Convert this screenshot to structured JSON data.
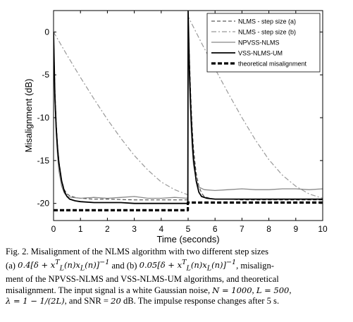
{
  "chart_data": {
    "type": "line",
    "xlabel": "Time (seconds)",
    "ylabel": "Misalignment (dB)",
    "xlim": [
      0,
      10
    ],
    "ylim": [
      -22,
      2.5
    ],
    "xticks": [
      0,
      1,
      2,
      3,
      4,
      5,
      6,
      7,
      8,
      9,
      10
    ],
    "yticks": [
      0,
      -5,
      -10,
      -15,
      -20
    ],
    "grid": false,
    "legend_position": "top-right",
    "series": [
      {
        "name": "NLMS - step size (a)",
        "style": "dashed-thin",
        "color": "#333333",
        "x": [
          0,
          0.05,
          0.1,
          0.15,
          0.2,
          0.3,
          0.4,
          0.5,
          0.6,
          0.8,
          1.0,
          1.5,
          2.0,
          3.0,
          4.0,
          4.99,
          5.0,
          5.05,
          5.1,
          5.15,
          5.2,
          5.3,
          5.4,
          5.5,
          5.6,
          5.8,
          6.0,
          6.5,
          7.0,
          8.0,
          9.0,
          10.0
        ],
        "y": [
          0,
          -6.5,
          -10.5,
          -13.2,
          -15.0,
          -17.3,
          -18.4,
          -18.9,
          -19.1,
          -19.3,
          -19.4,
          -19.5,
          -19.5,
          -19.6,
          -19.6,
          -19.6,
          2.2,
          -3.0,
          -7.5,
          -11.0,
          -13.6,
          -16.5,
          -18.0,
          -18.8,
          -19.2,
          -19.4,
          -19.5,
          -19.5,
          -19.6,
          -19.6,
          -19.6,
          -19.6
        ]
      },
      {
        "name": "NLMS - step size (b)",
        "style": "dashdot",
        "color": "#999999",
        "x": [
          0,
          0.5,
          1.0,
          1.5,
          2.0,
          2.5,
          3.0,
          3.5,
          4.0,
          4.5,
          4.99,
          5.0,
          5.5,
          6.0,
          6.5,
          7.0,
          7.5,
          8.0,
          8.5,
          9.0,
          9.5,
          10.0
        ],
        "y": [
          0,
          -2.7,
          -5.3,
          -7.8,
          -10.2,
          -12.4,
          -14.4,
          -16.1,
          -17.5,
          -18.4,
          -19.0,
          1.8,
          -1.3,
          -4.3,
          -7.2,
          -10.0,
          -12.6,
          -14.9,
          -16.7,
          -18.0,
          -18.9,
          -19.4
        ]
      },
      {
        "name": "NPVSS-NLMS",
        "style": "solid-gray",
        "color": "#888888",
        "x": [
          0,
          0.05,
          0.1,
          0.15,
          0.2,
          0.3,
          0.4,
          0.5,
          0.7,
          1.0,
          1.5,
          2.0,
          2.5,
          3.0,
          3.5,
          4.0,
          4.5,
          4.99,
          5.0,
          5.05,
          5.1,
          5.15,
          5.2,
          5.3,
          5.4,
          5.6,
          6.0,
          6.5,
          7.0,
          7.5,
          8.0,
          8.5,
          9.0,
          9.5,
          10.0
        ],
        "y": [
          0,
          -8.0,
          -12.0,
          -14.5,
          -16.2,
          -18.0,
          -18.8,
          -19.2,
          -19.3,
          -19.4,
          -19.3,
          -19.4,
          -19.3,
          -19.2,
          -19.4,
          -19.4,
          -19.3,
          -19.4,
          2.0,
          -6.0,
          -10.5,
          -13.5,
          -15.5,
          -17.3,
          -18.1,
          -18.4,
          -18.5,
          -18.4,
          -18.3,
          -18.4,
          -18.4,
          -18.3,
          -18.3,
          -18.4,
          -18.3
        ]
      },
      {
        "name": "VSS-NLMS-UM",
        "style": "solid-black",
        "color": "#000000",
        "x": [
          0,
          0.05,
          0.1,
          0.15,
          0.2,
          0.3,
          0.4,
          0.5,
          0.6,
          0.8,
          1.0,
          1.5,
          2.0,
          2.5,
          3.0,
          3.5,
          4.0,
          4.5,
          4.99,
          5.0,
          5.05,
          5.1,
          5.15,
          5.2,
          5.3,
          5.4,
          5.5,
          5.7,
          6.0,
          6.5,
          7.0,
          8.0,
          9.0,
          10.0
        ],
        "y": [
          0,
          -7.5,
          -11.2,
          -13.6,
          -15.3,
          -17.4,
          -18.6,
          -19.2,
          -19.5,
          -19.7,
          -19.8,
          -19.9,
          -19.9,
          -19.9,
          -20.0,
          -20.0,
          -20.0,
          -20.0,
          -20.0,
          2.4,
          -4.5,
          -9.0,
          -12.3,
          -14.8,
          -17.4,
          -18.7,
          -19.2,
          -19.4,
          -19.5,
          -19.5,
          -19.5,
          -19.5,
          -19.5,
          -19.5
        ]
      },
      {
        "name": "theoretical misalignment",
        "style": "thick-dashed",
        "color": "#000000",
        "x": [
          0,
          4.99,
          4.99,
          10
        ],
        "y": [
          -20.8,
          -20.8,
          -19.9,
          -19.9
        ]
      }
    ]
  },
  "caption": {
    "lines": [
      [
        "Fig. 2.  Misalignment of the NLMS algorithm with two different step sizes"
      ],
      [
        "(a) ",
        "0.4[δ + x",
        "T",
        "L",
        "(n)x",
        "L",
        "(n)]",
        "−1",
        " and (b) ",
        "0.05[δ + x",
        "T",
        "L",
        "(n)x",
        "L",
        "(n)]",
        "−1",
        ", misalign-"
      ],
      [
        "ment of the NPVSS-NLMS and VSS-NLMS-UM algorithms, and theoretical"
      ],
      [
        "misalignment. The input signal is a white Gaussian noise, ",
        "N = 1000",
        ", ",
        "L = 500",
        ","
      ],
      [
        "λ = 1 − 1/(2L)",
        ", and SNR = ",
        "20",
        " dB. The impulse response changes after 5 s."
      ]
    ]
  }
}
